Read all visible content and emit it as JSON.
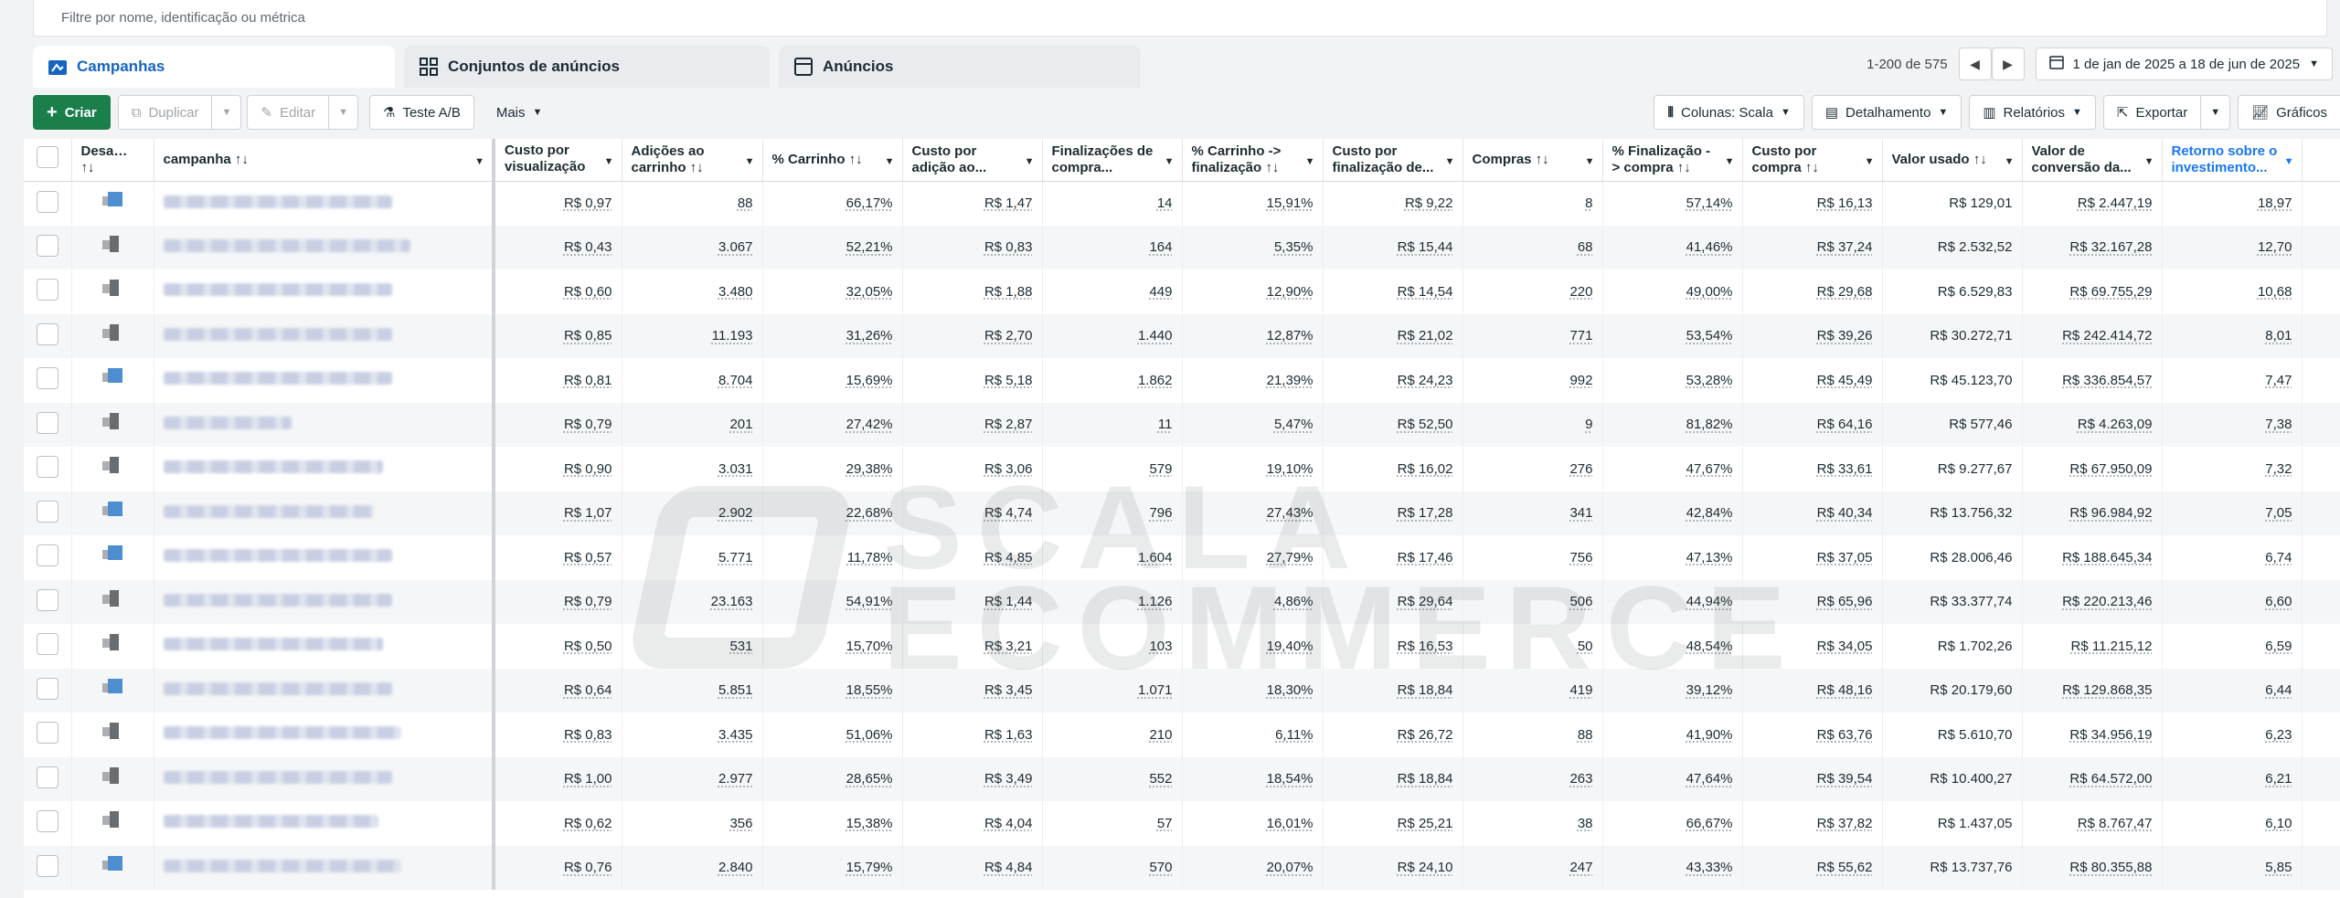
{
  "filter": {
    "placeholder": "Filtre por nome, identificação ou métrica"
  },
  "tabs": [
    {
      "label": "Campanhas",
      "active": true
    },
    {
      "label": "Conjuntos de anúncios",
      "active": false
    },
    {
      "label": "Anúncios",
      "active": false
    }
  ],
  "pager": {
    "range": "1-200 de 575",
    "date_range": "1 de jan de 2025 a 18 de jun de 2025"
  },
  "toolbar": {
    "create": "Criar",
    "duplicate": "Duplicar",
    "edit": "Editar",
    "ab_test": "Teste A/B",
    "more": "Mais",
    "columns": "Colunas: Scala",
    "breakdown": "Detalhamento",
    "reports": "Relatórios",
    "export": "Exportar",
    "charts": "Gráficos"
  },
  "watermark": {
    "line1": "SCALA",
    "line2": "ECOMMERCE"
  },
  "columns": [
    "Desati... ↑↓",
    "campanha ↑↓",
    "Custo por visualização d...",
    "Adições ao carrinho ↑↓",
    "% Carrinho ↑↓",
    "Custo por adição ao...",
    "Finalizações de compra...",
    "% Carrinho -> finalização ↑↓",
    "Custo por finalização de...",
    "Compras ↑↓",
    "% Finalização -> compra ↑↓",
    "Custo por compra ↑↓",
    "Valor usado ↑↓",
    "Valor de conversão da...",
    "Retorno sobre o investimento..."
  ],
  "rows": [
    {
      "status": "blue",
      "c": [
        "R$ 0,97",
        "88",
        "66,17%",
        "R$ 1,47",
        "14",
        "15,91%",
        "R$ 9,22",
        "8",
        "57,14%",
        "R$ 16,13",
        "R$ 129,01",
        "R$ 2.447,19",
        "18,97"
      ]
    },
    {
      "status": "gray",
      "c": [
        "R$ 0,43",
        "3.067",
        "52,21%",
        "R$ 0,83",
        "164",
        "5,35%",
        "R$ 15,44",
        "68",
        "41,46%",
        "R$ 37,24",
        "R$ 2.532,52",
        "R$ 32.167,28",
        "12,70"
      ]
    },
    {
      "status": "gray",
      "c": [
        "R$ 0,60",
        "3.480",
        "32,05%",
        "R$ 1,88",
        "449",
        "12,90%",
        "R$ 14,54",
        "220",
        "49,00%",
        "R$ 29,68",
        "R$ 6.529,83",
        "R$ 69.755,29",
        "10,68"
      ]
    },
    {
      "status": "gray",
      "c": [
        "R$ 0,85",
        "11.193",
        "31,26%",
        "R$ 2,70",
        "1.440",
        "12,87%",
        "R$ 21,02",
        "771",
        "53,54%",
        "R$ 39,26",
        "R$ 30.272,71",
        "R$ 242.414,72",
        "8,01"
      ]
    },
    {
      "status": "blue",
      "c": [
        "R$ 0,81",
        "8.704",
        "15,69%",
        "R$ 5,18",
        "1.862",
        "21,39%",
        "R$ 24,23",
        "992",
        "53,28%",
        "R$ 45,49",
        "R$ 45.123,70",
        "R$ 336.854,57",
        "7,47"
      ]
    },
    {
      "status": "gray",
      "c": [
        "R$ 0,79",
        "201",
        "27,42%",
        "R$ 2,87",
        "11",
        "5,47%",
        "R$ 52,50",
        "9",
        "81,82%",
        "R$ 64,16",
        "R$ 577,46",
        "R$ 4.263,09",
        "7,38"
      ]
    },
    {
      "status": "gray",
      "c": [
        "R$ 0,90",
        "3.031",
        "29,38%",
        "R$ 3,06",
        "579",
        "19,10%",
        "R$ 16,02",
        "276",
        "47,67%",
        "R$ 33,61",
        "R$ 9.277,67",
        "R$ 67.950,09",
        "7,32"
      ]
    },
    {
      "status": "blue",
      "c": [
        "R$ 1,07",
        "2.902",
        "22,68%",
        "R$ 4,74",
        "796",
        "27,43%",
        "R$ 17,28",
        "341",
        "42,84%",
        "R$ 40,34",
        "R$ 13.756,32",
        "R$ 96.984,92",
        "7,05"
      ]
    },
    {
      "status": "blue",
      "c": [
        "R$ 0,57",
        "5.771",
        "11,78%",
        "R$ 4,85",
        "1.604",
        "27,79%",
        "R$ 17,46",
        "756",
        "47,13%",
        "R$ 37,05",
        "R$ 28.006,46",
        "R$ 188.645,34",
        "6,74"
      ]
    },
    {
      "status": "gray",
      "c": [
        "R$ 0,79",
        "23.163",
        "54,91%",
        "R$ 1,44",
        "1.126",
        "4,86%",
        "R$ 29,64",
        "506",
        "44,94%",
        "R$ 65,96",
        "R$ 33.377,74",
        "R$ 220.213,46",
        "6,60"
      ]
    },
    {
      "status": "gray",
      "c": [
        "R$ 0,50",
        "531",
        "15,70%",
        "R$ 3,21",
        "103",
        "19,40%",
        "R$ 16,53",
        "50",
        "48,54%",
        "R$ 34,05",
        "R$ 1.702,26",
        "R$ 11.215,12",
        "6,59"
      ]
    },
    {
      "status": "blue",
      "c": [
        "R$ 0,64",
        "5.851",
        "18,55%",
        "R$ 3,45",
        "1.071",
        "18,30%",
        "R$ 18,84",
        "419",
        "39,12%",
        "R$ 48,16",
        "R$ 20.179,60",
        "R$ 129.868,35",
        "6,44"
      ]
    },
    {
      "status": "gray",
      "c": [
        "R$ 0,83",
        "3.435",
        "51,06%",
        "R$ 1,63",
        "210",
        "6,11%",
        "R$ 26,72",
        "88",
        "41,90%",
        "R$ 63,76",
        "R$ 5.610,70",
        "R$ 34.956,19",
        "6,23"
      ]
    },
    {
      "status": "gray",
      "c": [
        "R$ 1,00",
        "2.977",
        "28,65%",
        "R$ 3,49",
        "552",
        "18,54%",
        "R$ 18,84",
        "263",
        "47,64%",
        "R$ 39,54",
        "R$ 10.400,27",
        "R$ 64.572,00",
        "6,21"
      ]
    },
    {
      "status": "gray",
      "c": [
        "R$ 0,62",
        "356",
        "15,38%",
        "R$ 4,04",
        "57",
        "16,01%",
        "R$ 25,21",
        "38",
        "66,67%",
        "R$ 37,82",
        "R$ 1.437,05",
        "R$ 8.767,47",
        "6,10"
      ]
    },
    {
      "status": "blue",
      "c": [
        "R$ 0,76",
        "2.840",
        "15,79%",
        "R$ 4,84",
        "570",
        "20,07%",
        "R$ 24,10",
        "247",
        "43,33%",
        "R$ 55,62",
        "R$ 13.737,76",
        "R$ 80.355,88",
        "5,85"
      ]
    }
  ]
}
